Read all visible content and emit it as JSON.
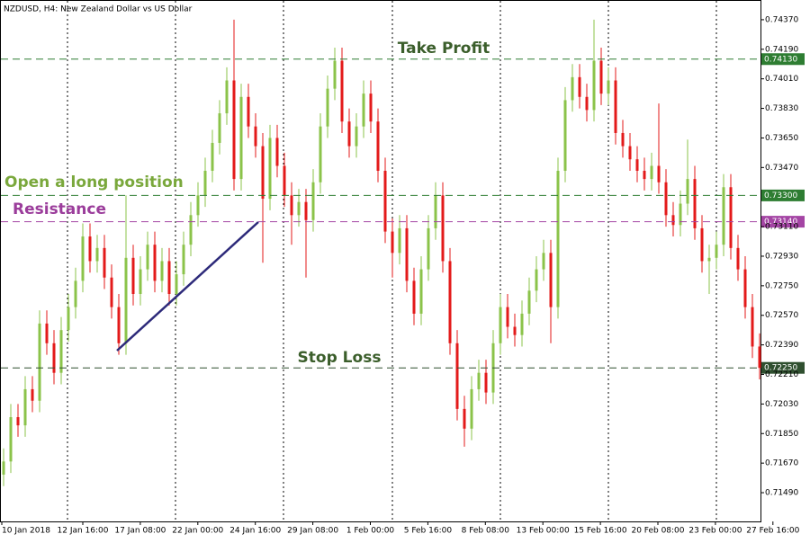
{
  "chart_data": {
    "type": "candlestick",
    "title": "NZDUSD, H4:  New Zealand Dollar vs US Dollar",
    "up_color": "#8bc34a",
    "down_color": "#e31a1a",
    "ylim": [
      0.71315,
      0.7449
    ],
    "yticks": [
      {
        "value": 0.7437,
        "label": "0.74370"
      },
      {
        "value": 0.7419,
        "label": "0.74190"
      },
      {
        "value": 0.7401,
        "label": "0.74010"
      },
      {
        "value": 0.7383,
        "label": "0.73830"
      },
      {
        "value": 0.7365,
        "label": "0.73650"
      },
      {
        "value": 0.7347,
        "label": "0.73470"
      },
      {
        "value": 0.7311,
        "label": "0.73110"
      },
      {
        "value": 0.7293,
        "label": "0.72930"
      },
      {
        "value": 0.7275,
        "label": "0.72750"
      },
      {
        "value": 0.7257,
        "label": "0.72570"
      },
      {
        "value": 0.7239,
        "label": "0.72390"
      },
      {
        "value": 0.7221,
        "label": "0.72210"
      },
      {
        "value": 0.7203,
        "label": "0.72030"
      },
      {
        "value": 0.7185,
        "label": "0.71850"
      },
      {
        "value": 0.7167,
        "label": "0.71670"
      },
      {
        "value": 0.7149,
        "label": "0.71490"
      }
    ],
    "x_labels": [
      "10 Jan 2018",
      "12 Jan 16:00",
      "17 Jan 08:00",
      "22 Jan 00:00",
      "24 Jan 16:00",
      "29 Jan 08:00",
      "1 Feb 00:00",
      "5 Feb 16:00",
      "8 Feb 08:00",
      "13 Feb 00:00",
      "15 Feb 16:00",
      "20 Feb 08:00",
      "23 Feb 00:00",
      "27 Feb 16:00"
    ],
    "levels": [
      {
        "name": "Take Profit",
        "value": 0.7413,
        "label": "0.74130",
        "color": "#2e7d32",
        "text_color": "#3b5e2b"
      },
      {
        "name": "Open a long position",
        "value": 0.733,
        "label": "0.73300",
        "color": "#2e7d32",
        "text_color": "#7aa83c"
      },
      {
        "name": "Resistance",
        "value": 0.7314,
        "label": "0.73140",
        "color": "#a445a4",
        "text_color": "#9b3d9b"
      },
      {
        "name": "Stop Loss",
        "value": 0.7225,
        "label": "0.72250",
        "color": "#2f4f2f",
        "text_color": "#3b5e2b"
      }
    ],
    "candles": {
      "open": [
        0.716,
        0.7168,
        0.7195,
        0.719,
        0.7212,
        0.7205,
        0.7252,
        0.724,
        0.7222,
        0.7248,
        0.7262,
        0.7278,
        0.7305,
        0.729,
        0.7298,
        0.728,
        0.7262,
        0.724,
        0.7292,
        0.727,
        0.7285,
        0.73,
        0.7278,
        0.729,
        0.727,
        0.7282,
        0.73,
        0.7318,
        0.733,
        0.7345,
        0.7362,
        0.738,
        0.74,
        0.734,
        0.739,
        0.7372,
        0.736,
        0.7328,
        0.7365,
        0.7348,
        0.733,
        0.7318,
        0.7326,
        0.7315,
        0.7338,
        0.7372,
        0.7395,
        0.7412,
        0.7375,
        0.736,
        0.7372,
        0.7392,
        0.7375,
        0.7345,
        0.7308,
        0.7295,
        0.731,
        0.7278,
        0.7258,
        0.7285,
        0.731,
        0.733,
        0.729,
        0.724,
        0.72,
        0.7188,
        0.7212,
        0.7222,
        0.721,
        0.724,
        0.7262,
        0.725,
        0.7245,
        0.7258,
        0.7272,
        0.7285,
        0.7295,
        0.7262,
        0.7345,
        0.7388,
        0.7402,
        0.739,
        0.7382,
        0.7412,
        0.7392,
        0.74,
        0.7368,
        0.736,
        0.7352,
        0.7345,
        0.734,
        0.7348,
        0.7338,
        0.7318,
        0.7312,
        0.7325,
        0.734,
        0.731,
        0.729,
        0.7292,
        0.73,
        0.7335,
        0.7298,
        0.7285,
        0.7262,
        0.7238
      ],
      "high": [
        0.7176,
        0.7203,
        0.7203,
        0.722,
        0.722,
        0.726,
        0.726,
        0.7248,
        0.7256,
        0.727,
        0.7286,
        0.7313,
        0.7313,
        0.7306,
        0.7306,
        0.7288,
        0.727,
        0.733,
        0.73,
        0.7293,
        0.7308,
        0.7308,
        0.7298,
        0.7298,
        0.729,
        0.7308,
        0.7326,
        0.7338,
        0.7353,
        0.737,
        0.7388,
        0.7408,
        0.7437,
        0.7398,
        0.7398,
        0.738,
        0.7368,
        0.7373,
        0.7373,
        0.7356,
        0.7338,
        0.7334,
        0.7334,
        0.7346,
        0.738,
        0.7403,
        0.742,
        0.742,
        0.7383,
        0.738,
        0.74,
        0.74,
        0.7383,
        0.7353,
        0.7316,
        0.7318,
        0.7318,
        0.7286,
        0.7293,
        0.7318,
        0.7338,
        0.7338,
        0.7298,
        0.7248,
        0.7208,
        0.722,
        0.723,
        0.723,
        0.7248,
        0.727,
        0.727,
        0.7258,
        0.7266,
        0.728,
        0.7293,
        0.7303,
        0.7303,
        0.7353,
        0.7396,
        0.741,
        0.741,
        0.7398,
        0.7437,
        0.742,
        0.7408,
        0.7408,
        0.7376,
        0.7368,
        0.736,
        0.7353,
        0.7356,
        0.7386,
        0.7346,
        0.7326,
        0.7333,
        0.7364,
        0.7348,
        0.7318,
        0.73,
        0.7308,
        0.7343,
        0.7343,
        0.7306,
        0.7293,
        0.727,
        0.7246
      ],
      "low": [
        0.7153,
        0.7161,
        0.7183,
        0.7183,
        0.7198,
        0.7198,
        0.7233,
        0.7215,
        0.7215,
        0.7241,
        0.7255,
        0.7271,
        0.7283,
        0.7283,
        0.7273,
        0.7255,
        0.7233,
        0.7233,
        0.7263,
        0.7263,
        0.7278,
        0.7271,
        0.7271,
        0.7263,
        0.7263,
        0.7275,
        0.7293,
        0.7311,
        0.7323,
        0.7338,
        0.7355,
        0.7373,
        0.7333,
        0.7333,
        0.7365,
        0.7353,
        0.7289,
        0.7321,
        0.7341,
        0.7323,
        0.73,
        0.7311,
        0.728,
        0.7308,
        0.7331,
        0.7365,
        0.7388,
        0.7368,
        0.7353,
        0.7353,
        0.7365,
        0.7368,
        0.7338,
        0.7301,
        0.728,
        0.7288,
        0.7271,
        0.7251,
        0.7251,
        0.7278,
        0.7303,
        0.7283,
        0.7233,
        0.7193,
        0.7177,
        0.7181,
        0.7205,
        0.7203,
        0.7203,
        0.7233,
        0.7243,
        0.7238,
        0.7238,
        0.7251,
        0.7265,
        0.7278,
        0.724,
        0.7255,
        0.7338,
        0.7381,
        0.7383,
        0.7375,
        0.7375,
        0.7385,
        0.7385,
        0.7361,
        0.7353,
        0.7345,
        0.7338,
        0.7333,
        0.7333,
        0.7331,
        0.7311,
        0.7305,
        0.7305,
        0.7318,
        0.7303,
        0.7283,
        0.727,
        0.7285,
        0.7293,
        0.7291,
        0.7278,
        0.7255,
        0.7231,
        0.7218
      ],
      "close": [
        0.7168,
        0.7195,
        0.719,
        0.7212,
        0.7205,
        0.7252,
        0.724,
        0.7222,
        0.7248,
        0.7262,
        0.7278,
        0.7305,
        0.729,
        0.7298,
        0.728,
        0.7262,
        0.724,
        0.7292,
        0.727,
        0.7285,
        0.73,
        0.7278,
        0.729,
        0.727,
        0.7282,
        0.73,
        0.7318,
        0.733,
        0.7345,
        0.7362,
        0.738,
        0.74,
        0.734,
        0.739,
        0.7372,
        0.736,
        0.7328,
        0.7365,
        0.7348,
        0.733,
        0.7318,
        0.7326,
        0.7315,
        0.7338,
        0.7372,
        0.7395,
        0.7412,
        0.7375,
        0.736,
        0.7372,
        0.7392,
        0.7375,
        0.7345,
        0.7308,
        0.7295,
        0.731,
        0.7278,
        0.7258,
        0.7285,
        0.731,
        0.733,
        0.729,
        0.724,
        0.72,
        0.7188,
        0.7212,
        0.7222,
        0.721,
        0.724,
        0.7262,
        0.725,
        0.7245,
        0.7258,
        0.7272,
        0.7285,
        0.7295,
        0.7262,
        0.7345,
        0.7388,
        0.7402,
        0.739,
        0.7382,
        0.7412,
        0.7392,
        0.74,
        0.7368,
        0.736,
        0.7352,
        0.7345,
        0.734,
        0.7348,
        0.7338,
        0.7318,
        0.7312,
        0.7325,
        0.734,
        0.731,
        0.729,
        0.7292,
        0.73,
        0.7335,
        0.7298,
        0.7285,
        0.7262,
        0.7238,
        0.7225
      ]
    }
  }
}
